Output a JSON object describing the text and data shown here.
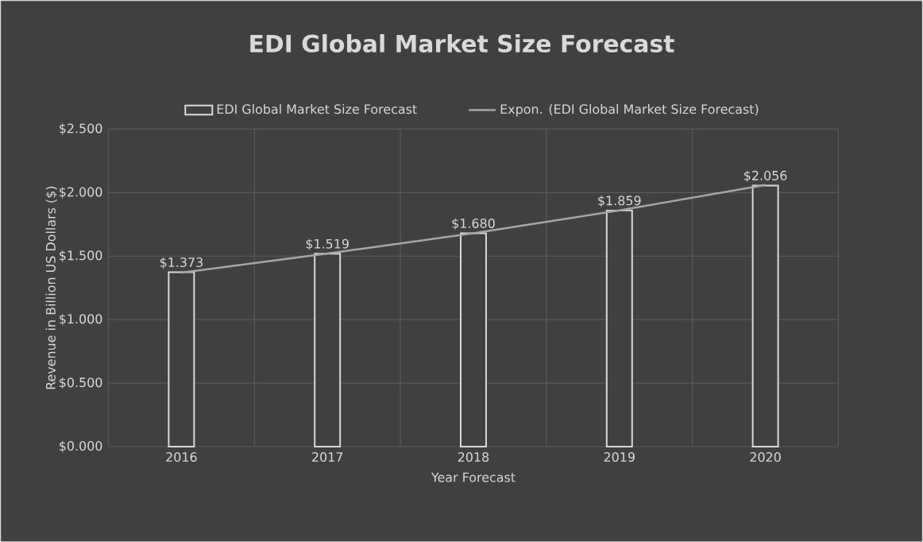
{
  "chart_data": {
    "type": "bar",
    "title": "EDI Global Market Size Forecast",
    "xlabel": "Year Forecast",
    "ylabel": "Revenue in Billion US Dollars ($)",
    "categories": [
      "2016",
      "2017",
      "2018",
      "2019",
      "2020"
    ],
    "series": [
      {
        "name": "EDI Global Market Size Forecast",
        "color": "#d9d9d9",
        "values": [
          1.373,
          1.519,
          1.68,
          1.859,
          2.056
        ],
        "value_labels": [
          "$1.373",
          "$1.519",
          "$1.680",
          "$1.859",
          "$2.056"
        ]
      },
      {
        "name": "Expon. (EDI Global Market Size Forecast)",
        "type": "line",
        "color": "#a6a6a6",
        "values": [
          1.37,
          1.52,
          1.68,
          1.86,
          2.06
        ]
      }
    ],
    "ylim": [
      0,
      2.5
    ],
    "yticks": [
      {
        "value": 0,
        "label": "$0.000"
      },
      {
        "value": 0.5,
        "label": "$0.500"
      },
      {
        "value": 1,
        "label": "$1.000"
      },
      {
        "value": 1.5,
        "label": "$1.500"
      },
      {
        "value": 2,
        "label": "$2.000"
      },
      {
        "value": 2.5,
        "label": "$2.500"
      }
    ],
    "grid": true,
    "legend": "top"
  }
}
